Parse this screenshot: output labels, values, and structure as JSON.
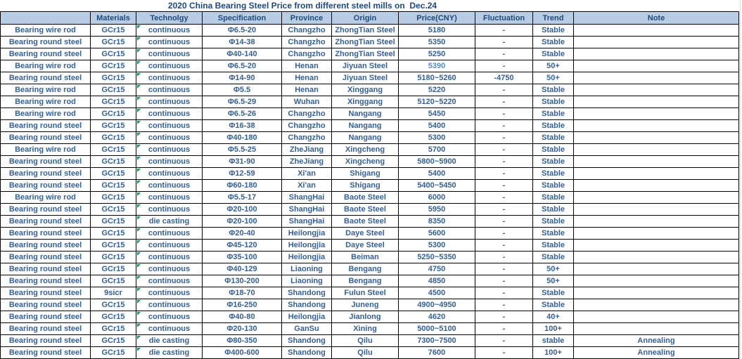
{
  "title": "2020 China Bearing Steel Price from different steel mills on  Dec.24",
  "colors": {
    "header_bg": "#b8cce4",
    "header_text": "#1f497d",
    "data_text": "#376092",
    "highlight_price_text": "#538dd5",
    "grid_border": "#000000",
    "error_marker_green": "#00a650"
  },
  "table": {
    "column_keys": [
      "product",
      "materials",
      "technology",
      "specification",
      "province",
      "origin",
      "price",
      "fluctuation",
      "trend",
      "note"
    ],
    "headers": [
      "",
      "Materials",
      "Technolgy",
      "Specification",
      "Province",
      "Origin",
      "Price(CNY)",
      "Fluctuation",
      "Trend",
      "Note"
    ],
    "tech_error_marker": true,
    "price_highlight_rows": [
      3
    ],
    "rows": [
      [
        "Bearing wire rod",
        "GCr15",
        "continuous",
        "Φ6.5-20",
        "Changzho",
        "ZhongTian Steel",
        "5180",
        "-",
        "Stable",
        ""
      ],
      [
        "Bearing round steel",
        "GCr15",
        "continuous",
        "Φ14-38",
        "Changzho",
        "ZhongTian Steel",
        "5350",
        "-",
        "Stable",
        ""
      ],
      [
        "Bearing round steel",
        "GCr15",
        "continuous",
        "Φ40-140",
        "Changzho",
        "ZhongTian Steel",
        "5250",
        "-",
        "Stable",
        ""
      ],
      [
        "Bearing wire rod",
        "GCr15",
        "continuous",
        "Φ6.5-20",
        "Henan",
        "Jiyuan Steel",
        "5390",
        "-",
        "50+",
        ""
      ],
      [
        "Bearing round steel",
        "GCr15",
        "continuous",
        "Φ14-90",
        "Henan",
        "Jiyuan Steel",
        "5180~5260",
        "-4750",
        "50+",
        ""
      ],
      [
        "Bearing wire rod",
        "GCr15",
        "continuous",
        "Φ5.5",
        "Henan",
        "Xinggang",
        "5220",
        "-",
        "Stable",
        ""
      ],
      [
        "Bearing wire rod",
        "GCr15",
        "continuous",
        "Φ6.5-29",
        "Wuhan",
        "Xinggang",
        "5120~5220",
        "-",
        "Stable",
        ""
      ],
      [
        "Bearing wire rod",
        "GCr15",
        "continuous",
        "Φ6.5-26",
        "Changzho",
        "Nangang",
        "5450",
        "-",
        "Stable",
        ""
      ],
      [
        "Bearing round steel",
        "GCr15",
        "continuous",
        "Φ16-38",
        "Changzho",
        "Nangang",
        "5400",
        "-",
        "Stable",
        ""
      ],
      [
        "Bearing round steel",
        "GCr15",
        "continuous",
        "Φ40-180",
        "Changzho",
        "Nangang",
        "5300",
        "-",
        "Stable",
        ""
      ],
      [
        "Bearing wire rod",
        "GCr15",
        "continuous",
        "Φ5.5-25",
        "ZheJiang",
        "Xingcheng",
        "5700",
        "-",
        "Stable",
        ""
      ],
      [
        "Bearing round steel",
        "GCr15",
        "continuous",
        "Φ31-90",
        "ZheJiang",
        "Xingcheng",
        "5800~5900",
        "-",
        "Stable",
        ""
      ],
      [
        "Bearing round steel",
        "GCr15",
        "continuous",
        "Φ12-59",
        "Xi'an",
        "Shigang",
        "5400",
        "-",
        "Stable",
        ""
      ],
      [
        "Bearing round steel",
        "GCr15",
        "continuous",
        "Φ60-180",
        "Xi'an",
        "Shigang",
        "5400~5450",
        "-",
        "Stable",
        ""
      ],
      [
        "Bearing wire rod",
        "GCr15",
        "continuous",
        "Φ5.5-17",
        "ShangHai",
        "Baote Steel",
        "6000",
        "-",
        "Stable",
        ""
      ],
      [
        "Bearing round steel",
        "GCr15",
        "continuous",
        "Φ20-100",
        "ShangHai",
        "Baote Steel",
        "5950",
        "-",
        "Stable",
        ""
      ],
      [
        "Bearing round steel",
        "GCr15",
        "die casting",
        "Φ20-100",
        "ShangHai",
        "Baote Steel",
        "8350",
        "-",
        "Stable",
        ""
      ],
      [
        "Bearing round steel",
        "GCr15",
        "continuous",
        "Φ20-40",
        "Heilongjia",
        "Daye Steel",
        "5600",
        "-",
        "Stable",
        ""
      ],
      [
        "Bearing round steel",
        "GCr15",
        "continuous",
        "Φ45-120",
        "Heilongjia",
        "Daye Steel",
        "5300",
        "-",
        "Stable",
        ""
      ],
      [
        "Bearing round steel",
        "GCr15",
        "continuous",
        "Φ35-100",
        "Heilongjia",
        "Beiman",
        "5250~5350",
        "-",
        "Stable",
        ""
      ],
      [
        "Bearing round steel",
        "GCr15",
        "continuous",
        "Φ40-129",
        "Liaoning",
        "Bengang",
        "4750",
        "-",
        "50+",
        ""
      ],
      [
        "Bearing round steel",
        "GCr15",
        "continuous",
        "Φ130-200",
        "Liaoning",
        "Bengang",
        "4850",
        "-",
        "50+",
        ""
      ],
      [
        "Bearing round steel",
        "9sicr",
        "continuous",
        "Φ18-70",
        "Shandong",
        "Fulun Steel",
        "4500",
        "-",
        "Stable",
        ""
      ],
      [
        "Bearing round steel",
        "GCr15",
        "continuous",
        "Φ16-250",
        "Shandong",
        "Juneng",
        "4900~4950",
        "-",
        "Stable",
        ""
      ],
      [
        "Bearing round steel",
        "GCr15",
        "continuous",
        "Φ40-80",
        "Heilongjia",
        "Jianlong",
        "4620",
        "-",
        "40+",
        ""
      ],
      [
        "Bearing round steel",
        "GCr15",
        "continuous",
        "Φ20-130",
        "GanSu",
        "Xining",
        "5000~5100",
        "-",
        "100+",
        ""
      ],
      [
        "Bearing round steel",
        "GCr15",
        "die casting",
        "Φ80-350",
        "Shandong",
        "Qilu",
        "7300~7500",
        "-",
        "stable",
        "Annealing"
      ],
      [
        "Bearing round steel",
        "GCr15",
        "die casting",
        "Φ400-600",
        "Shandong",
        "Qilu",
        "7600",
        "-",
        "100+",
        "Annealing"
      ]
    ]
  }
}
